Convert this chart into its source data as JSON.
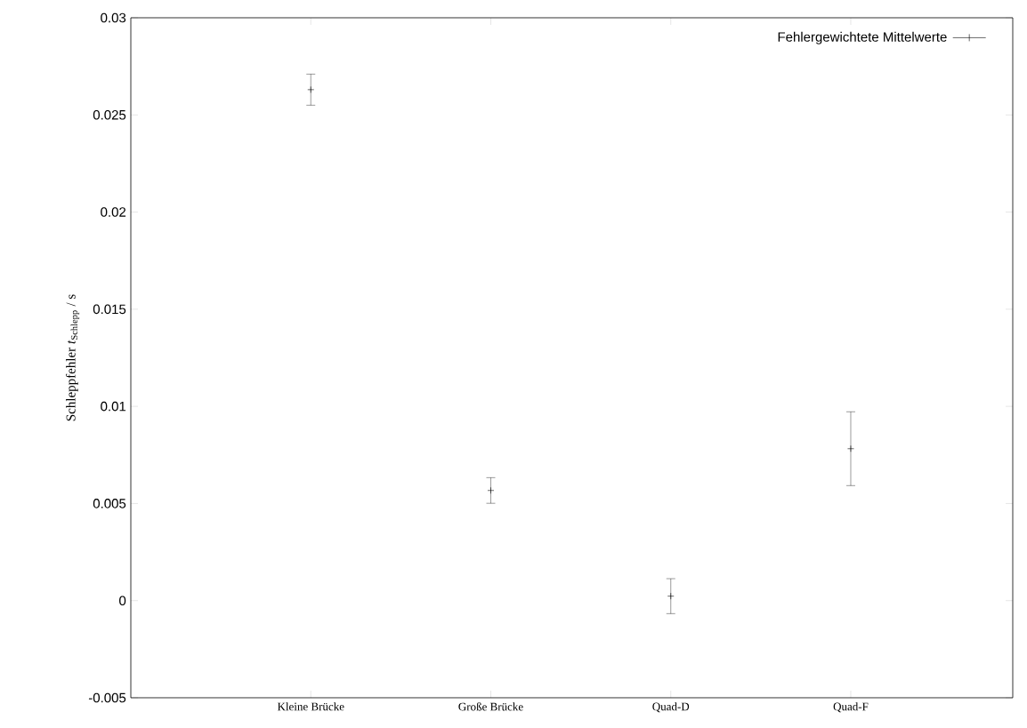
{
  "chart_data": {
    "type": "scatter",
    "ylabel": "Schleppfehler *t*$_{Schlepp}$ / s",
    "categories": [
      "Kleine Brücke",
      "Große Brücke",
      "Quad-D",
      "Quad-F"
    ],
    "series": [
      {
        "name": "Fehlergewichtete Mittelwerte",
        "color": "#000000",
        "values": [
          0.0263,
          0.00567,
          0.00023,
          0.00782
        ],
        "errors": [
          0.0008,
          0.00066,
          0.0009,
          0.0019
        ]
      }
    ],
    "ylim": [
      -0.005,
      0.03
    ],
    "yticks": [
      -0.005,
      0,
      0.005,
      0.01,
      0.015,
      0.02,
      0.025,
      0.03
    ],
    "marker": "cross",
    "legend": "top right",
    "grid": false
  }
}
